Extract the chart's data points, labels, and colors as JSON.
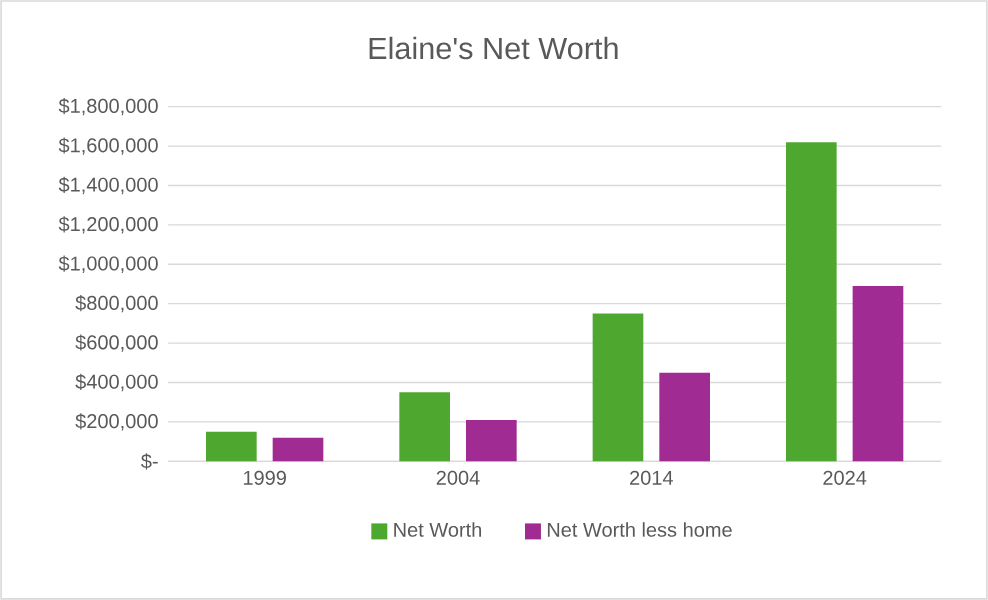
{
  "chart_data": {
    "type": "bar",
    "title": "Elaine's Net Worth",
    "categories": [
      "1999",
      "2004",
      "2014",
      "2024"
    ],
    "series": [
      {
        "name": "Net Worth",
        "color": "#4ea72e",
        "values": [
          150000,
          350000,
          750000,
          1620000
        ]
      },
      {
        "name": "Net Worth less home",
        "color": "#a02b93",
        "values": [
          120000,
          210000,
          450000,
          890000
        ]
      }
    ],
    "ylim": [
      0,
      1800000
    ],
    "yticks": [
      {
        "value": 0,
        "label": "$-"
      },
      {
        "value": 200000,
        "label": "$200,000"
      },
      {
        "value": 400000,
        "label": "$400,000"
      },
      {
        "value": 600000,
        "label": "$600,000"
      },
      {
        "value": 800000,
        "label": "$800,000"
      },
      {
        "value": 1000000,
        "label": "$1,000,000"
      },
      {
        "value": 1200000,
        "label": "$1,200,000"
      },
      {
        "value": 1400000,
        "label": "$1,400,000"
      },
      {
        "value": 1600000,
        "label": "$1,600,000"
      },
      {
        "value": 1800000,
        "label": "$1,800,000"
      }
    ],
    "grid": "y",
    "legend": "bottom"
  }
}
